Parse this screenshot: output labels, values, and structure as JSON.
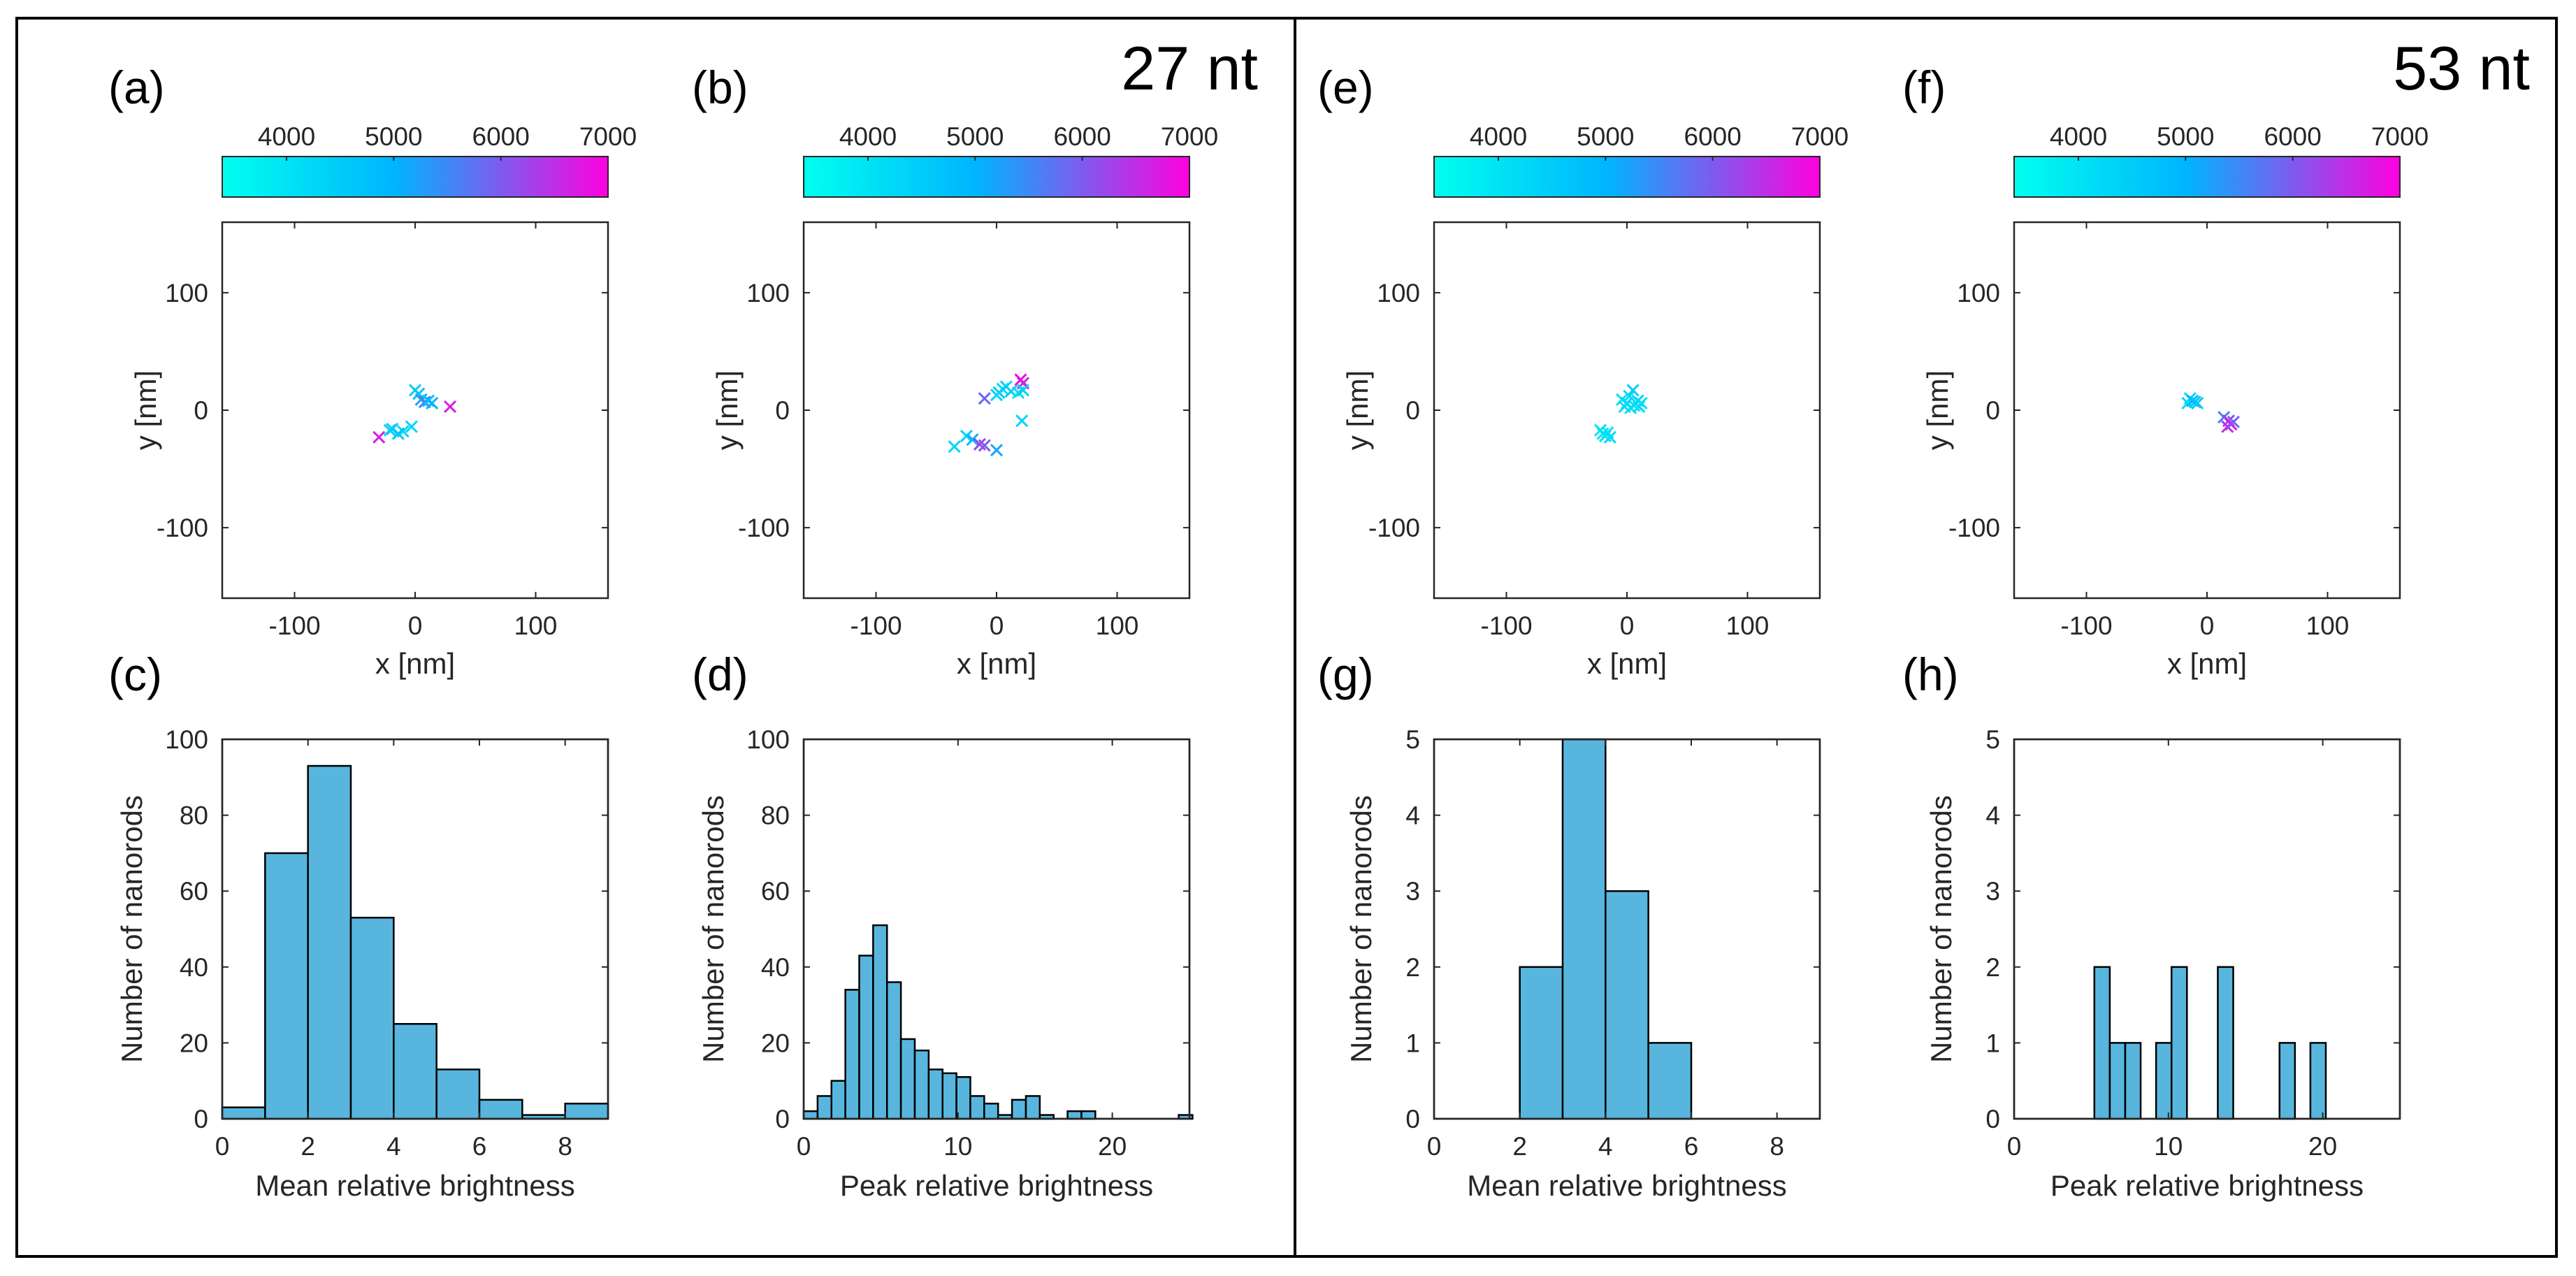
{
  "figure": {
    "groups": [
      {
        "title": "27 nt"
      },
      {
        "title": "53 nt"
      }
    ]
  },
  "colorbar": {
    "tick_values": [
      4000,
      5000,
      6000,
      7000
    ],
    "tick_labels": [
      "4000",
      "5000",
      "6000",
      "7000"
    ],
    "range": [
      3400,
      7000
    ],
    "colors": [
      "#00ffee",
      "#00b4ff",
      "#ff00e0"
    ]
  },
  "chart_data": [
    {
      "id": "a",
      "type": "scatter",
      "panel_label": "(a)",
      "xlabel": "x [nm]",
      "ylabel": "y [nm]",
      "xlim": [
        -160,
        160
      ],
      "ylim": [
        -160,
        160
      ],
      "xticks": [
        -100,
        0,
        100
      ],
      "yticks": [
        -100,
        0,
        100
      ],
      "tick_labels": [
        "-100",
        "0",
        "100"
      ],
      "marker": "x",
      "points": [
        {
          "x": 0,
          "y": 17,
          "v": 4500
        },
        {
          "x": 3,
          "y": 14,
          "v": 4700
        },
        {
          "x": 5,
          "y": 9,
          "v": 5200
        },
        {
          "x": 8,
          "y": 7,
          "v": 5600
        },
        {
          "x": 11,
          "y": 8,
          "v": 4600
        },
        {
          "x": 14,
          "y": 6,
          "v": 5000
        },
        {
          "x": 29,
          "y": 3,
          "v": 6700
        },
        {
          "x": -3,
          "y": -14,
          "v": 4300
        },
        {
          "x": -10,
          "y": -18,
          "v": 4200
        },
        {
          "x": -14,
          "y": -20,
          "v": 4700
        },
        {
          "x": -19,
          "y": -16,
          "v": 4600
        },
        {
          "x": -21,
          "y": -17,
          "v": 4400
        },
        {
          "x": -30,
          "y": -23,
          "v": 6700
        }
      ]
    },
    {
      "id": "b",
      "type": "scatter",
      "panel_label": "(b)",
      "xlabel": "x [nm]",
      "ylabel": "y [nm]",
      "xlim": [
        -160,
        160
      ],
      "ylim": [
        -160,
        160
      ],
      "xticks": [
        -100,
        0,
        100
      ],
      "yticks": [
        -100,
        0,
        100
      ],
      "tick_labels": [
        "-100",
        "0",
        "100"
      ],
      "marker": "x",
      "points": [
        {
          "x": 20,
          "y": 26,
          "v": 6900
        },
        {
          "x": 22,
          "y": 23,
          "v": 6600
        },
        {
          "x": 8,
          "y": 20,
          "v": 4400
        },
        {
          "x": 5,
          "y": 18,
          "v": 4200
        },
        {
          "x": 2,
          "y": 15,
          "v": 4600
        },
        {
          "x": 0,
          "y": 13,
          "v": 4300
        },
        {
          "x": 12,
          "y": 16,
          "v": 4500
        },
        {
          "x": 18,
          "y": 15,
          "v": 4100
        },
        {
          "x": 22,
          "y": 17,
          "v": 4400
        },
        {
          "x": -10,
          "y": 10,
          "v": 5900
        },
        {
          "x": 21,
          "y": -9,
          "v": 4300
        },
        {
          "x": -25,
          "y": -22,
          "v": 4400
        },
        {
          "x": -20,
          "y": -25,
          "v": 5000
        },
        {
          "x": -14,
          "y": -29,
          "v": 6300
        },
        {
          "x": -10,
          "y": -30,
          "v": 6000
        },
        {
          "x": -35,
          "y": -31,
          "v": 4300
        },
        {
          "x": 0,
          "y": -34,
          "v": 5200
        }
      ]
    },
    {
      "id": "e",
      "type": "scatter",
      "panel_label": "(e)",
      "xlabel": "x [nm]",
      "ylabel": "y [nm]",
      "xlim": [
        -160,
        160
      ],
      "ylim": [
        -160,
        160
      ],
      "xticks": [
        -100,
        0,
        100
      ],
      "yticks": [
        -100,
        0,
        100
      ],
      "tick_labels": [
        "-100",
        "0",
        "100"
      ],
      "marker": "x",
      "points": [
        {
          "x": 5,
          "y": 17,
          "v": 4500
        },
        {
          "x": 2,
          "y": 12,
          "v": 4200
        },
        {
          "x": -4,
          "y": 9,
          "v": 4000
        },
        {
          "x": 0,
          "y": 6,
          "v": 4300
        },
        {
          "x": 6,
          "y": 4,
          "v": 4100
        },
        {
          "x": 9,
          "y": 8,
          "v": 4400
        },
        {
          "x": 3,
          "y": 2,
          "v": 4000
        },
        {
          "x": -2,
          "y": 3,
          "v": 4200
        },
        {
          "x": 10,
          "y": 3,
          "v": 4300
        },
        {
          "x": 12,
          "y": 6,
          "v": 4000
        },
        {
          "x": -16,
          "y": -19,
          "v": 4000
        },
        {
          "x": -18,
          "y": -22,
          "v": 4100
        },
        {
          "x": -20,
          "y": -20,
          "v": 4000
        },
        {
          "x": -14,
          "y": -23,
          "v": 4200
        },
        {
          "x": -22,
          "y": -17,
          "v": 4000
        }
      ]
    },
    {
      "id": "f",
      "type": "scatter",
      "panel_label": "(f)",
      "xlabel": "x [nm]",
      "ylabel": "y [nm]",
      "xlim": [
        -160,
        160
      ],
      "ylim": [
        -160,
        160
      ],
      "xticks": [
        -100,
        0,
        100
      ],
      "yticks": [
        -100,
        0,
        100
      ],
      "tick_labels": [
        "-100",
        "0",
        "100"
      ],
      "marker": "x",
      "points": [
        {
          "x": -14,
          "y": 10,
          "v": 4300
        },
        {
          "x": -10,
          "y": 7,
          "v": 4600
        },
        {
          "x": -16,
          "y": 6,
          "v": 4200
        },
        {
          "x": -12,
          "y": 8,
          "v": 5000
        },
        {
          "x": -8,
          "y": 6,
          "v": 4500
        },
        {
          "x": 14,
          "y": -6,
          "v": 5600
        },
        {
          "x": 18,
          "y": -9,
          "v": 6200
        },
        {
          "x": 20,
          "y": -12,
          "v": 6800
        },
        {
          "x": 17,
          "y": -14,
          "v": 6500
        },
        {
          "x": 22,
          "y": -10,
          "v": 5900
        }
      ]
    },
    {
      "id": "c",
      "type": "bar",
      "panel_label": "(c)",
      "xlabel": "Mean relative brightness",
      "ylabel": "Number of nanorods",
      "xlim": [
        0,
        9
      ],
      "ylim": [
        0,
        100
      ],
      "xticks": [
        0,
        2,
        4,
        6,
        8
      ],
      "xtick_labels": [
        "0",
        "2",
        "4",
        "6",
        "8"
      ],
      "yticks": [
        0,
        20,
        40,
        60,
        80,
        100
      ],
      "ytick_labels": [
        "0",
        "20",
        "40",
        "60",
        "80",
        "100"
      ],
      "bin_edges": [
        0,
        1,
        2,
        3,
        4,
        5,
        6,
        7,
        8,
        9
      ],
      "values": [
        3,
        70,
        93,
        53,
        25,
        13,
        5,
        1,
        4
      ]
    },
    {
      "id": "d",
      "type": "bar",
      "panel_label": "(d)",
      "xlabel": "Peak relative brightness",
      "ylabel": "Number of nanorods",
      "xlim": [
        0,
        25
      ],
      "ylim": [
        0,
        100
      ],
      "xticks": [
        0,
        10,
        20
      ],
      "xtick_labels": [
        "0",
        "10",
        "20"
      ],
      "yticks": [
        0,
        20,
        40,
        60,
        80,
        100
      ],
      "ytick_labels": [
        "0",
        "20",
        "40",
        "60",
        "80",
        "100"
      ],
      "bin_edges": [
        0,
        0.9,
        1.8,
        2.7,
        3.6,
        4.5,
        5.4,
        6.3,
        7.2,
        8.1,
        9.0,
        9.9,
        10.8,
        11.7,
        12.6,
        13.5,
        14.4,
        15.3,
        16.2,
        17.1,
        18.0,
        18.9,
        19.8,
        20.7,
        21.6,
        22.5,
        23.4,
        24.3,
        25.2
      ],
      "values": [
        2,
        6,
        10,
        34,
        43,
        51,
        36,
        21,
        18,
        13,
        12,
        11,
        6,
        4,
        1,
        5,
        6,
        1,
        0,
        2,
        2,
        0,
        0,
        0,
        0,
        0,
        0,
        1
      ]
    },
    {
      "id": "g",
      "type": "bar",
      "panel_label": "(g)",
      "xlabel": "Mean relative brightness",
      "ylabel": "Number of nanorods",
      "xlim": [
        0,
        9
      ],
      "ylim": [
        0,
        5
      ],
      "xticks": [
        0,
        2,
        4,
        6,
        8
      ],
      "xtick_labels": [
        "0",
        "2",
        "4",
        "6",
        "8"
      ],
      "yticks": [
        0,
        1,
        2,
        3,
        4,
        5
      ],
      "ytick_labels": [
        "0",
        "1",
        "2",
        "3",
        "4",
        "5"
      ],
      "bin_edges": [
        2,
        3,
        4,
        5,
        6
      ],
      "values": [
        2,
        5,
        3,
        1
      ]
    },
    {
      "id": "h",
      "type": "bar",
      "panel_label": "(h)",
      "xlabel": "Peak relative brightness",
      "ylabel": "Number of nanorods",
      "xlim": [
        0,
        25
      ],
      "ylim": [
        0,
        5
      ],
      "xticks": [
        0,
        10,
        20
      ],
      "xtick_labels": [
        "0",
        "10",
        "20"
      ],
      "yticks": [
        0,
        1,
        2,
        3,
        4,
        5
      ],
      "ytick_labels": [
        "0",
        "1",
        "2",
        "3",
        "4",
        "5"
      ],
      "bin_edges": [
        5.2,
        6.2,
        7.2,
        8.2,
        9.2,
        10.2,
        11.2,
        12.2,
        13.2,
        14.2,
        15.2,
        16.2,
        17.2,
        18.2,
        19.2,
        20.2
      ],
      "values": [
        2,
        1,
        1,
        0,
        1,
        2,
        0,
        0,
        2,
        0,
        0,
        0,
        1,
        0,
        1
      ]
    }
  ]
}
